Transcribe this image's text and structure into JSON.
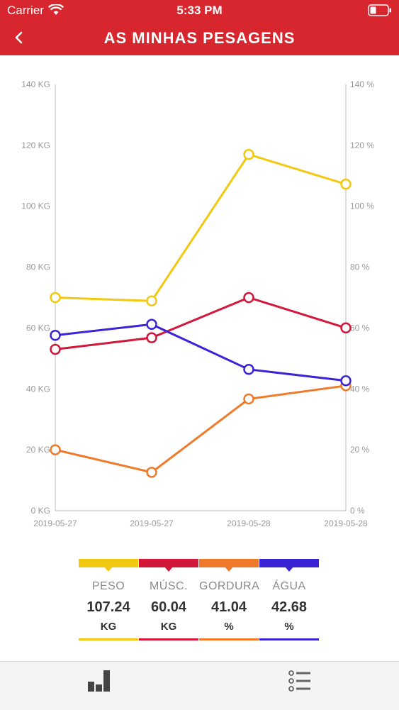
{
  "status": {
    "carrier": "Carrier",
    "time": "5:33 PM"
  },
  "nav": {
    "title": "AS MINHAS PESAGENS"
  },
  "chart_data": {
    "type": "line",
    "categories": [
      "2019-05-27",
      "2019-05-27",
      "2019-05-28",
      "2019-05-28"
    ],
    "left_axis": {
      "ticks": [
        "0 KG",
        "20 KG",
        "40 KG",
        "60 KG",
        "80 KG",
        "100 KG",
        "120 KG",
        "140 KG"
      ],
      "ylim": [
        0,
        140
      ]
    },
    "right_axis": {
      "ticks": [
        "0 %",
        "20 %",
        "40 %",
        "60 %",
        "80 %",
        "100 %",
        "120 %",
        "140 %"
      ],
      "ylim": [
        0,
        140
      ]
    },
    "series": [
      {
        "name": "PESO",
        "color": "#f2c811",
        "values": [
          70.0,
          68.9,
          117.0,
          107.24
        ]
      },
      {
        "name": "MÚSC.",
        "color": "#d4163a",
        "values": [
          53.0,
          56.8,
          70.0,
          60.04
        ]
      },
      {
        "name": "GORDURA",
        "color": "#ee7a2a",
        "values": [
          20.0,
          12.6,
          36.7,
          41.04
        ]
      },
      {
        "name": "ÁGUA",
        "color": "#3b24d6",
        "values": [
          57.6,
          61.2,
          46.4,
          42.68
        ]
      }
    ]
  },
  "legend": [
    {
      "label": "PESO",
      "value": "107.24",
      "unit": "KG",
      "color": "#f2c811"
    },
    {
      "label": "MÚSC.",
      "value": "60.04",
      "unit": "KG",
      "color": "#d4163a"
    },
    {
      "label": "GORDURA",
      "value": "41.04",
      "unit": "%",
      "color": "#ee7a2a"
    },
    {
      "label": "ÁGUA",
      "value": "42.68",
      "unit": "%",
      "color": "#3b24d6"
    }
  ],
  "tabbar": {
    "items": [
      {
        "icon": "bar-chart-icon"
      },
      {
        "icon": "list-icon"
      }
    ]
  }
}
